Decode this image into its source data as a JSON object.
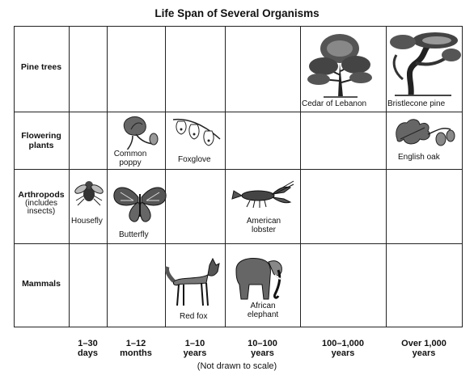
{
  "title": "Life Span of Several Organisms",
  "rows": [
    {
      "label": "Pine trees"
    },
    {
      "label": "Flowering plants"
    },
    {
      "label": "Arthropods",
      "sublabel": "(includes insects)"
    },
    {
      "label": "Mammals"
    }
  ],
  "columns": [
    {
      "line1": "1–30",
      "line2": "days"
    },
    {
      "line1": "1–12",
      "line2": "months"
    },
    {
      "line1": "1–10",
      "line2": "years"
    },
    {
      "line1": "10–100",
      "line2": "years"
    },
    {
      "line1": "100–1,000",
      "line2": "years"
    },
    {
      "line1": "Over 1,000",
      "line2": "years"
    }
  ],
  "organisms": {
    "cedar": "Cedar of Lebanon",
    "bristlecone": "Bristlecone pine",
    "poppy_1": "Common",
    "poppy_2": "poppy",
    "foxglove": "Foxglove",
    "oak": "English oak",
    "housefly": "Housefly",
    "butterfly": "Butterfly",
    "lobster_1": "American",
    "lobster_2": "lobster",
    "redfox": "Red fox",
    "elephant_1": "African",
    "elephant_2": "elephant"
  },
  "note": "(Not drawn to scale)"
}
